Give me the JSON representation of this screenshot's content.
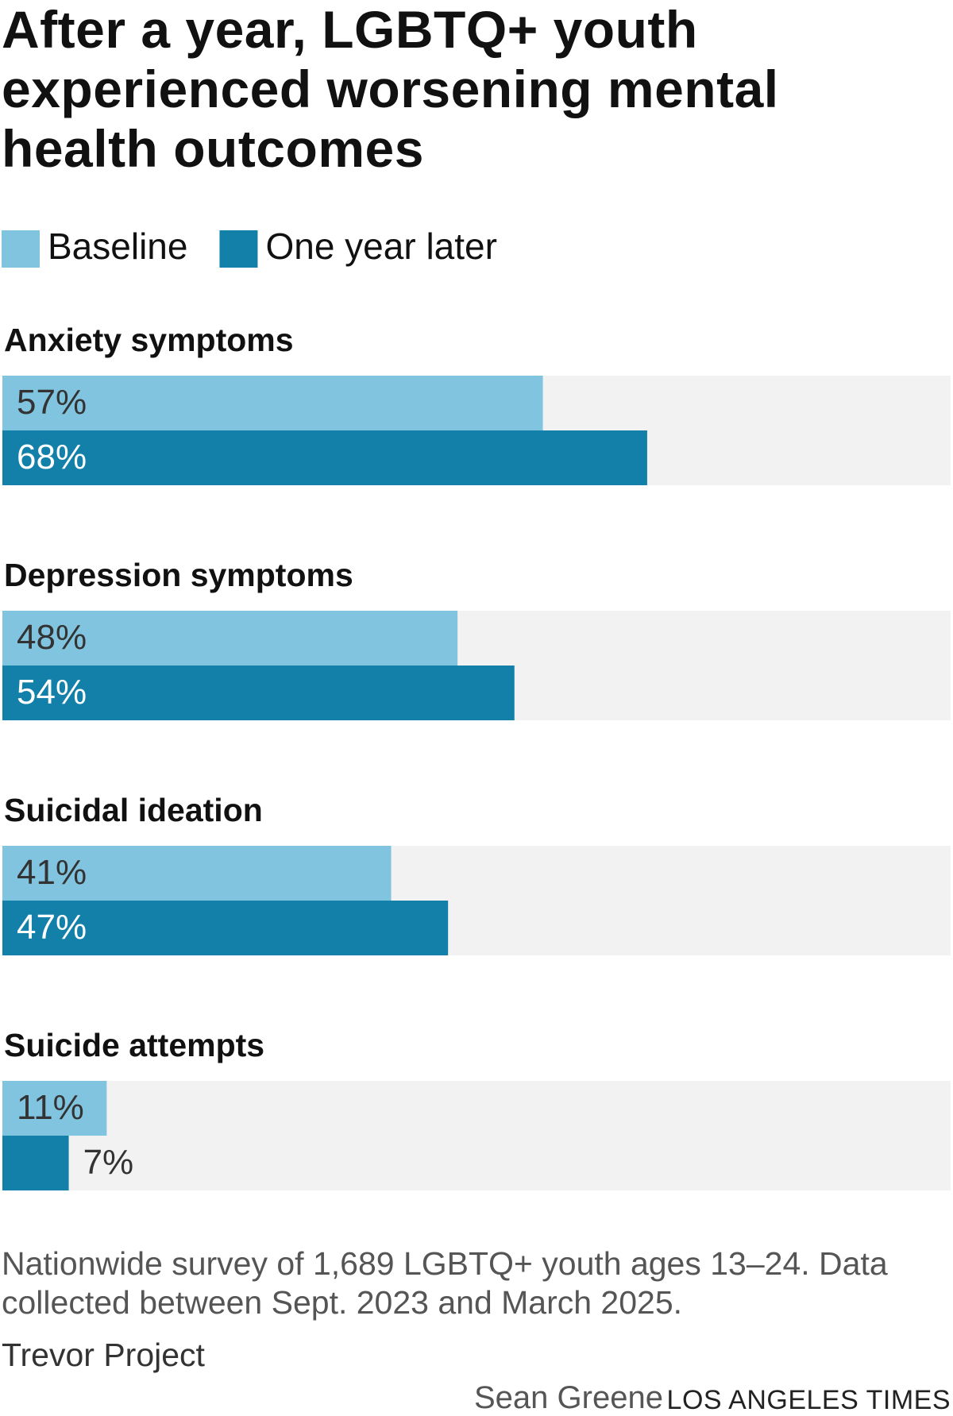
{
  "chart_data": {
    "type": "bar",
    "orientation": "horizontal",
    "title": "After a year, LGBTQ+ youth experienced worsening mental health outcomes",
    "categories": [
      "Anxiety symptoms",
      "Depression symptoms",
      "Suicidal ideation",
      "Suicide attempts"
    ],
    "series": [
      {
        "name": "Baseline",
        "color": "#80c4df",
        "values": [
          57,
          48,
          41,
          11
        ],
        "value_labels": [
          "57%",
          "48%",
          "41%",
          "11%"
        ]
      },
      {
        "name": "One year later",
        "color": "#1380aa",
        "values": [
          68,
          54,
          47,
          7
        ],
        "value_labels": [
          "68%",
          "54%",
          "47%",
          "7%"
        ]
      }
    ],
    "xlim": [
      0,
      100
    ],
    "track_color": "#f2f2f2",
    "note": "Nationwide survey of 1,689 LGBTQ+ youth ages 13–24. Data collected between Sept. 2023 and March 2025.",
    "source": "Trevor Project",
    "credit": "Sean Greene",
    "publisher": "LOS ANGELES TIMES"
  }
}
